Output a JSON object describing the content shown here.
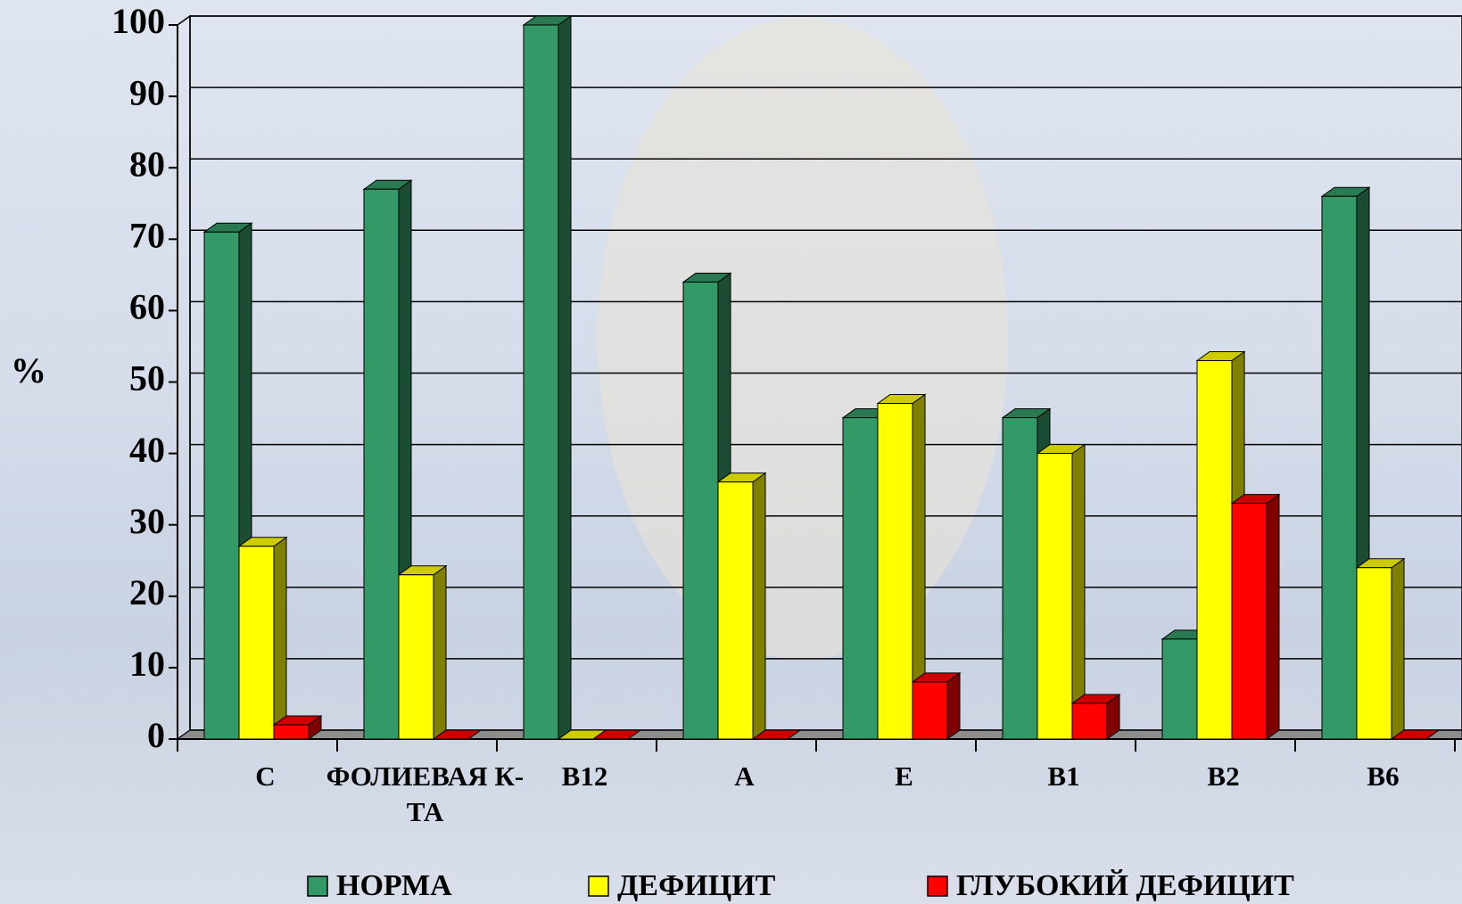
{
  "chart_data": {
    "type": "bar3d",
    "ylabel": "%",
    "categories": [
      "C",
      "ФОЛИЕВАЯ К-ТА",
      "B12",
      "A",
      "E",
      "B1",
      "B2",
      "B6"
    ],
    "series": [
      {
        "name": "НОРМА",
        "color": "#339966",
        "values": [
          71,
          77,
          100,
          64,
          45,
          45,
          14,
          76
        ]
      },
      {
        "name": "ДЕФИЦИТ",
        "color": "#ffff00",
        "values": [
          27,
          23,
          0,
          36,
          47,
          40,
          53,
          24
        ]
      },
      {
        "name": "ГЛУБОКИЙ ДЕФИЦИТ",
        "color": "#ff0000",
        "values": [
          2,
          0,
          0,
          0,
          8,
          5,
          33,
          0
        ]
      }
    ],
    "ylim": [
      0,
      100
    ],
    "yticks": [
      0,
      10,
      20,
      30,
      40,
      50,
      60,
      70,
      80,
      90,
      100
    ],
    "grid": true,
    "legend": "bottom"
  }
}
